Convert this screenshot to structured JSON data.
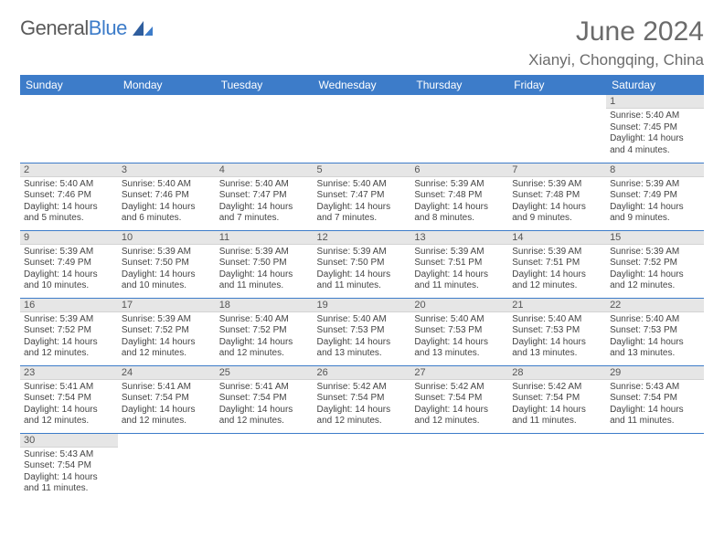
{
  "brand": {
    "part1": "General",
    "part2": "Blue"
  },
  "title": "June 2024",
  "location": "Xianyi, Chongqing, China",
  "colors": {
    "header_bg": "#3d7cc9",
    "header_fg": "#ffffff",
    "daynum_bg": "#e6e6e6",
    "row_border": "#3d7cc9",
    "text": "#444444",
    "title": "#6b6b6b"
  },
  "typography": {
    "body_pt": 10,
    "header_pt": 12,
    "title_pt": 30,
    "location_pt": 17
  },
  "weekdays": [
    "Sunday",
    "Monday",
    "Tuesday",
    "Wednesday",
    "Thursday",
    "Friday",
    "Saturday"
  ],
  "grid": [
    [
      null,
      null,
      null,
      null,
      null,
      null,
      {
        "n": "1",
        "sr": "5:40 AM",
        "ss": "7:45 PM",
        "dh": "14",
        "dm": "4"
      }
    ],
    [
      {
        "n": "2",
        "sr": "5:40 AM",
        "ss": "7:46 PM",
        "dh": "14",
        "dm": "5"
      },
      {
        "n": "3",
        "sr": "5:40 AM",
        "ss": "7:46 PM",
        "dh": "14",
        "dm": "6"
      },
      {
        "n": "4",
        "sr": "5:40 AM",
        "ss": "7:47 PM",
        "dh": "14",
        "dm": "7"
      },
      {
        "n": "5",
        "sr": "5:40 AM",
        "ss": "7:47 PM",
        "dh": "14",
        "dm": "7"
      },
      {
        "n": "6",
        "sr": "5:39 AM",
        "ss": "7:48 PM",
        "dh": "14",
        "dm": "8"
      },
      {
        "n": "7",
        "sr": "5:39 AM",
        "ss": "7:48 PM",
        "dh": "14",
        "dm": "9"
      },
      {
        "n": "8",
        "sr": "5:39 AM",
        "ss": "7:49 PM",
        "dh": "14",
        "dm": "9"
      }
    ],
    [
      {
        "n": "9",
        "sr": "5:39 AM",
        "ss": "7:49 PM",
        "dh": "14",
        "dm": "10"
      },
      {
        "n": "10",
        "sr": "5:39 AM",
        "ss": "7:50 PM",
        "dh": "14",
        "dm": "10"
      },
      {
        "n": "11",
        "sr": "5:39 AM",
        "ss": "7:50 PM",
        "dh": "14",
        "dm": "11"
      },
      {
        "n": "12",
        "sr": "5:39 AM",
        "ss": "7:50 PM",
        "dh": "14",
        "dm": "11"
      },
      {
        "n": "13",
        "sr": "5:39 AM",
        "ss": "7:51 PM",
        "dh": "14",
        "dm": "11"
      },
      {
        "n": "14",
        "sr": "5:39 AM",
        "ss": "7:51 PM",
        "dh": "14",
        "dm": "12"
      },
      {
        "n": "15",
        "sr": "5:39 AM",
        "ss": "7:52 PM",
        "dh": "14",
        "dm": "12"
      }
    ],
    [
      {
        "n": "16",
        "sr": "5:39 AM",
        "ss": "7:52 PM",
        "dh": "14",
        "dm": "12"
      },
      {
        "n": "17",
        "sr": "5:39 AM",
        "ss": "7:52 PM",
        "dh": "14",
        "dm": "12"
      },
      {
        "n": "18",
        "sr": "5:40 AM",
        "ss": "7:52 PM",
        "dh": "14",
        "dm": "12"
      },
      {
        "n": "19",
        "sr": "5:40 AM",
        "ss": "7:53 PM",
        "dh": "14",
        "dm": "13"
      },
      {
        "n": "20",
        "sr": "5:40 AM",
        "ss": "7:53 PM",
        "dh": "14",
        "dm": "13"
      },
      {
        "n": "21",
        "sr": "5:40 AM",
        "ss": "7:53 PM",
        "dh": "14",
        "dm": "13"
      },
      {
        "n": "22",
        "sr": "5:40 AM",
        "ss": "7:53 PM",
        "dh": "14",
        "dm": "13"
      }
    ],
    [
      {
        "n": "23",
        "sr": "5:41 AM",
        "ss": "7:54 PM",
        "dh": "14",
        "dm": "12"
      },
      {
        "n": "24",
        "sr": "5:41 AM",
        "ss": "7:54 PM",
        "dh": "14",
        "dm": "12"
      },
      {
        "n": "25",
        "sr": "5:41 AM",
        "ss": "7:54 PM",
        "dh": "14",
        "dm": "12"
      },
      {
        "n": "26",
        "sr": "5:42 AM",
        "ss": "7:54 PM",
        "dh": "14",
        "dm": "12"
      },
      {
        "n": "27",
        "sr": "5:42 AM",
        "ss": "7:54 PM",
        "dh": "14",
        "dm": "12"
      },
      {
        "n": "28",
        "sr": "5:42 AM",
        "ss": "7:54 PM",
        "dh": "14",
        "dm": "11"
      },
      {
        "n": "29",
        "sr": "5:43 AM",
        "ss": "7:54 PM",
        "dh": "14",
        "dm": "11"
      }
    ],
    [
      {
        "n": "30",
        "sr": "5:43 AM",
        "ss": "7:54 PM",
        "dh": "14",
        "dm": "11"
      },
      null,
      null,
      null,
      null,
      null,
      null
    ]
  ],
  "labels": {
    "sunrise": "Sunrise:",
    "sunset": "Sunset:",
    "daylight": "Daylight:",
    "hours": "hours",
    "and": "and",
    "minutes": "minutes."
  }
}
